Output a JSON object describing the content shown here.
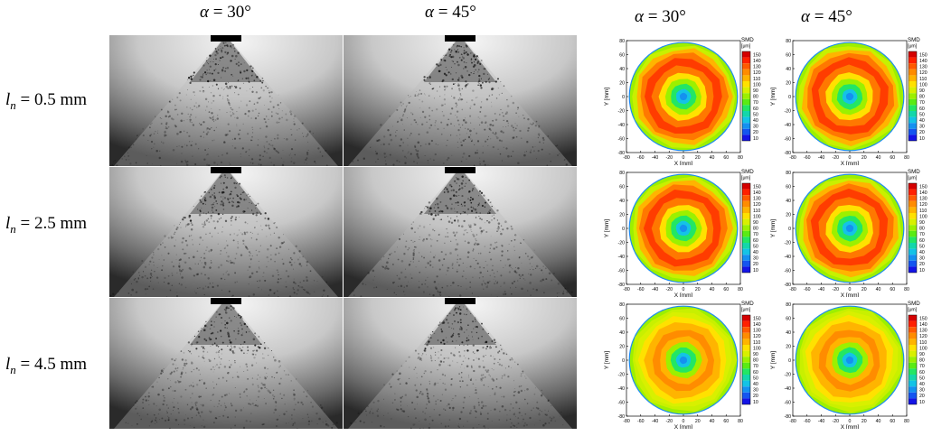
{
  "columns": {
    "photo_30": {
      "prefix": "α",
      "suffix": " = 30°"
    },
    "photo_45": {
      "prefix": "α",
      "suffix": " = 45°"
    },
    "map_30": {
      "prefix": "α",
      "suffix": " = 30°"
    },
    "map_45": {
      "prefix": "α",
      "suffix": " = 45°"
    }
  },
  "rows": [
    {
      "symbol": "l",
      "subscript": "n",
      "value": " = 0.5 mm",
      "ring_strength": 1.0
    },
    {
      "symbol": "l",
      "subscript": "n",
      "value": " = 2.5 mm",
      "ring_strength": 0.75
    },
    {
      "symbol": "l",
      "subscript": "n",
      "value": " = 4.5 mm",
      "ring_strength": 0.62
    }
  ],
  "maps": {
    "x_label": "X [mm]",
    "y_label": "Y [mm]",
    "x_ticks": [
      "-80",
      "-60",
      "-40",
      "-20",
      "0",
      "20",
      "40",
      "60",
      "80"
    ],
    "y_ticks": [
      "80",
      "60",
      "40",
      "20",
      "0",
      "-20",
      "-40",
      "-60",
      "-80"
    ],
    "axis_range": [
      -80,
      80
    ],
    "legend_title": "SMD",
    "legend_unit": "[μm]",
    "legend_levels": [
      "150",
      "140",
      "130",
      "120",
      "110",
      "100",
      "90",
      "80",
      "70",
      "60",
      "50",
      "40",
      "30",
      "20",
      "10"
    ],
    "legend_colors": [
      "#d40000",
      "#ff2000",
      "#ff5a00",
      "#ff8c00",
      "#ffb400",
      "#ffe100",
      "#d8f000",
      "#9cf000",
      "#5aeb14",
      "#23e664",
      "#14d7aa",
      "#14c3e6",
      "#1491f0",
      "#1455f0",
      "#1414e6"
    ]
  }
}
